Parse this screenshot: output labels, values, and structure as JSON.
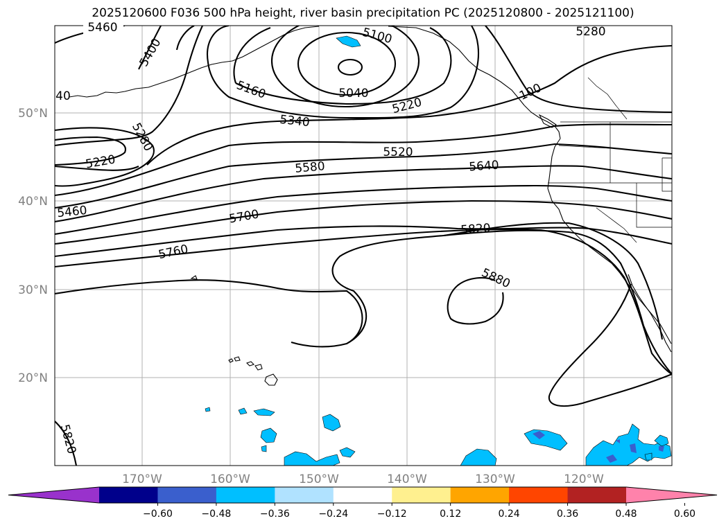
{
  "title": "2025120600 F036 500 hPa height, river basin precipitation PC (2025120800 - 2025121100)",
  "map": {
    "latitude_labels": [
      "50°N",
      "40°N",
      "30°N",
      "20°N"
    ],
    "longitude_labels": [
      "170°W",
      "160°W",
      "150°W",
      "140°W",
      "130°W",
      "120°W"
    ],
    "contour_labels": [
      "5460",
      "5400",
      "5100",
      "5280",
      "5040",
      "5160",
      "5220",
      "5340",
      "40",
      "5280",
      "5220",
      "5520",
      "5580",
      "5640",
      "100",
      "5460",
      "5700",
      "5820",
      "5760",
      "5880",
      "5820"
    ],
    "fill_color": "#00bfff",
    "fill_color_dark": "#3a5fcd"
  },
  "colorbar": {
    "tick_labels": [
      "−0.60",
      "−0.48",
      "−0.36",
      "−0.24",
      "−0.12",
      "0.12",
      "0.24",
      "0.36",
      "0.48",
      "0.60"
    ],
    "colors": [
      "#9932cc",
      "#00008b",
      "#3a5fcd",
      "#00bfff",
      "#b0e2ff",
      "#ffffff",
      "#fff08f",
      "#ffa500",
      "#ff4500",
      "#b22222",
      "#ff82ab"
    ]
  }
}
